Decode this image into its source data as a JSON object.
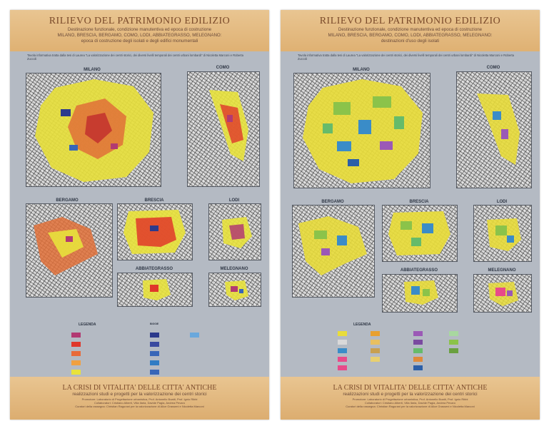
{
  "posters": [
    {
      "title": "RILIEVO DEL PATRIMONIO EDILIZIO",
      "subtitle1": "Destinazione funzionale, condizione manutentiva ed epoca di costruzione",
      "subtitle2": "MILANO, BRESCIA, BERGAMO, COMO, LODI, ABBIATEGRASSO, MELEGNANO:",
      "subtitle3": "epoca di costruzione degli isolati e degli edifici monumentali",
      "intro": "Tavola informativa tratta dalla tesi di Laurea \"La valorizzazione dei centri storici, dei diversi livelli temporali dei centri urbani lombardi\" di Nicoletta Marconi e Roberta Zuccoli",
      "maps": {
        "milano": "MILANO",
        "como": "COMO",
        "bergamo": "BERGAMO",
        "brescia": "BRESCIA",
        "lodi": "LODI",
        "abbiategrasso": "ABBIATEGRASSO",
        "melegnano": "MELEGNANO"
      },
      "legend_title": "LEGENDA",
      "legend_title2": "BIGGIE",
      "footer_title": "LA CRISI DI VITALITA' DELLE CITTA' ANTICHE",
      "footer_sub": "realizzazioni studi e progetti per la valorizzazione dei centri storici",
      "footer_credit1": "Promotore: Laboratorio di Progettazione urbanistica, Prof. Antonello Boatti, Prof. Ignio Ribbi",
      "footer_credit2": "Collaboratori: Cristiano Alberti, Villa Ilaria, Davide Pagia, Andrea Pevaro",
      "footer_credit3": "Curatori della rassegna: Christian Ragurani per la valorizzazione di Alice Grasseni e Nicoletta Marconi",
      "colors": [
        "#e8e23c",
        "#e0372a",
        "#e86a3a",
        "#b23a72",
        "#d9c640",
        "#2c3a8c",
        "#3866b8",
        "#4aa0d8"
      ]
    },
    {
      "title": "RILIEVO DEL PATRIMONIO EDILIZIO",
      "subtitle1": "Destinazione funzionale, condizione manutentiva ed epoca di costruzione",
      "subtitle2": "MILANO, BRESCIA, BERGAMO, COMO, LODI, ABBIATEGRASSO, MELEGNANO:",
      "subtitle3": "destinazioni d'uso degli isolati",
      "intro": "Tavola informativa tratta dalla tesi di Laurea \"La valorizzazione dei centri storici, dei diversi livelli temporali dei centri urbani lombardi\" di Nicoletta Marconi e Roberta Zuccoli",
      "maps": {
        "milano": "MILANO",
        "como": "COMO",
        "bergamo": "BERGAMO",
        "brescia": "BRESCIA",
        "lodi": "LODI",
        "abbiategrasso": "ABBIATEGRASSO",
        "melegnano": "MELEGNANO"
      },
      "legend_title": "LEGENDA",
      "footer_title": "LA CRISI DI VITALITA' DELLE CITTA' ANTICHE",
      "footer_sub": "realizzazioni studi e progetti per la valorizzazione dei centri storici",
      "footer_credit1": "Promotore: Laboratorio di Progettazione urbanistica, Prof. Antonello Boatti, Prof. Ignio Ribbi",
      "footer_credit2": "Collaboratori: Cristiano Alberti, Villa Ilaria, Davide Pagia, Andrea Pevaro",
      "footer_credit3": "Curatori della rassegna: Christian Ragurani per la valorizzazione di Alice Grasseni e Nicoletta Marconi",
      "colors": [
        "#e8dc3a",
        "#8bc34a",
        "#3a8cc8",
        "#e8a030",
        "#9b59b6",
        "#e84a8a",
        "#66bb6a",
        "#2c5fa8"
      ]
    }
  ]
}
